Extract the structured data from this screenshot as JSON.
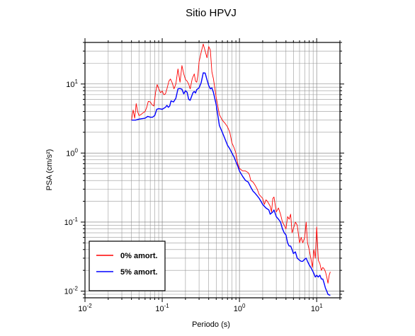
{
  "chart_data": {
    "type": "line",
    "title": "Sitio HPVJ",
    "xlabel": "Periodo (s)",
    "ylabel": "PSA (cm/s²)",
    "xscale": "log",
    "yscale": "log",
    "xlim": [
      0.01,
      20
    ],
    "ylim": [
      0.008,
      40
    ],
    "grid": true,
    "legend_position": "bottom-left",
    "x_tick_labels": [
      {
        "value": 0.01,
        "base": "10",
        "exp": "-2"
      },
      {
        "value": 0.1,
        "base": "10",
        "exp": "-1"
      },
      {
        "value": 1,
        "base": "10",
        "exp": "0"
      },
      {
        "value": 10,
        "base": "10",
        "exp": "1"
      }
    ],
    "y_tick_labels": [
      {
        "value": 0.01,
        "base": "10",
        "exp": "-2"
      },
      {
        "value": 0.1,
        "base": "10",
        "exp": "-1"
      },
      {
        "value": 1,
        "base": "10",
        "exp": "0"
      },
      {
        "value": 10,
        "base": "10",
        "exp": "1"
      }
    ],
    "series": [
      {
        "name": "0% amort.",
        "color": "#ff0000",
        "points": [
          [
            0.04,
            3.0
          ],
          [
            0.042,
            4.2
          ],
          [
            0.044,
            3.2
          ],
          [
            0.046,
            5.2
          ],
          [
            0.048,
            4.0
          ],
          [
            0.05,
            3.5
          ],
          [
            0.053,
            3.6
          ],
          [
            0.056,
            3.8
          ],
          [
            0.06,
            4.0
          ],
          [
            0.063,
            4.6
          ],
          [
            0.066,
            5.6
          ],
          [
            0.07,
            5.5
          ],
          [
            0.074,
            5.0
          ],
          [
            0.078,
            4.8
          ],
          [
            0.082,
            7.6
          ],
          [
            0.086,
            9.8
          ],
          [
            0.09,
            8.6
          ],
          [
            0.095,
            7.5
          ],
          [
            0.1,
            7.9
          ],
          [
            0.105,
            7.0
          ],
          [
            0.11,
            7.2
          ],
          [
            0.116,
            8.8
          ],
          [
            0.122,
            11.0
          ],
          [
            0.128,
            11.8
          ],
          [
            0.135,
            10.3
          ],
          [
            0.142,
            8.5
          ],
          [
            0.15,
            10.0
          ],
          [
            0.16,
            16.5
          ],
          [
            0.17,
            10.6
          ],
          [
            0.18,
            18.5
          ],
          [
            0.19,
            14.0
          ],
          [
            0.2,
            11.6
          ],
          [
            0.21,
            11.0
          ],
          [
            0.22,
            10.0
          ],
          [
            0.23,
            8.5
          ],
          [
            0.245,
            12.0
          ],
          [
            0.26,
            14.0
          ],
          [
            0.27,
            11.0
          ],
          [
            0.28,
            10.6
          ],
          [
            0.29,
            13.5
          ],
          [
            0.3,
            21.0
          ],
          [
            0.32,
            29.0
          ],
          [
            0.34,
            38.0
          ],
          [
            0.36,
            30.0
          ],
          [
            0.38,
            24.0
          ],
          [
            0.4,
            35.0
          ],
          [
            0.42,
            31.0
          ],
          [
            0.44,
            15.0
          ],
          [
            0.46,
            12.0
          ],
          [
            0.5,
            6.4
          ],
          [
            0.55,
            3.6
          ],
          [
            0.6,
            3.0
          ],
          [
            0.65,
            2.7
          ],
          [
            0.7,
            2.4
          ],
          [
            0.75,
            2.0
          ],
          [
            0.8,
            1.4
          ],
          [
            0.85,
            1.2
          ],
          [
            0.9,
            1.0
          ],
          [
            0.95,
            0.7
          ],
          [
            1.0,
            0.6
          ],
          [
            1.1,
            0.55
          ],
          [
            1.2,
            0.55
          ],
          [
            1.3,
            0.52
          ],
          [
            1.35,
            0.48
          ],
          [
            1.4,
            0.4
          ],
          [
            1.5,
            0.38
          ],
          [
            1.6,
            0.34
          ],
          [
            1.7,
            0.3
          ],
          [
            1.8,
            0.25
          ],
          [
            2.0,
            0.22
          ],
          [
            2.1,
            0.18
          ],
          [
            2.2,
            0.21
          ],
          [
            2.3,
            0.2
          ],
          [
            2.5,
            0.17
          ],
          [
            2.6,
            0.14
          ],
          [
            2.7,
            0.22
          ],
          [
            2.8,
            0.23
          ],
          [
            3.0,
            0.14
          ],
          [
            3.2,
            0.16
          ],
          [
            3.4,
            0.13
          ],
          [
            3.6,
            0.1
          ],
          [
            3.8,
            0.09
          ],
          [
            4.0,
            0.08
          ],
          [
            4.2,
            0.12
          ],
          [
            4.4,
            0.11
          ],
          [
            4.6,
            0.13
          ],
          [
            4.8,
            0.07
          ],
          [
            5.0,
            0.08
          ],
          [
            5.3,
            0.1
          ],
          [
            5.6,
            0.09
          ],
          [
            6.0,
            0.05
          ],
          [
            6.3,
            0.06
          ],
          [
            6.6,
            0.05
          ],
          [
            7.0,
            0.06
          ],
          [
            7.3,
            0.1
          ],
          [
            7.6,
            0.05
          ],
          [
            8.0,
            0.04
          ],
          [
            8.4,
            0.03
          ],
          [
            8.8,
            0.022
          ],
          [
            9.2,
            0.04
          ],
          [
            9.6,
            0.03
          ],
          [
            10.0,
            0.085
          ],
          [
            10.5,
            0.028
          ],
          [
            11.0,
            0.025
          ],
          [
            11.5,
            0.02
          ],
          [
            12.0,
            0.022
          ],
          [
            12.5,
            0.021
          ],
          [
            13.0,
            0.019
          ],
          [
            13.5,
            0.016
          ],
          [
            14.0,
            0.013
          ],
          [
            14.5,
            0.017
          ],
          [
            15.0,
            0.019
          ]
        ]
      },
      {
        "name": "5% amort.",
        "color": "#0000ff",
        "points": [
          [
            0.04,
            3.0
          ],
          [
            0.045,
            3.0
          ],
          [
            0.05,
            3.1
          ],
          [
            0.055,
            3.15
          ],
          [
            0.06,
            3.2
          ],
          [
            0.065,
            3.4
          ],
          [
            0.07,
            3.3
          ],
          [
            0.075,
            3.3
          ],
          [
            0.08,
            3.5
          ],
          [
            0.085,
            4.3
          ],
          [
            0.09,
            4.4
          ],
          [
            0.1,
            4.3
          ],
          [
            0.11,
            4.6
          ],
          [
            0.115,
            4.9
          ],
          [
            0.12,
            4.6
          ],
          [
            0.125,
            4.8
          ],
          [
            0.13,
            5.7
          ],
          [
            0.14,
            5.5
          ],
          [
            0.15,
            6.2
          ],
          [
            0.16,
            8.5
          ],
          [
            0.17,
            8.6
          ],
          [
            0.18,
            8.4
          ],
          [
            0.19,
            7.2
          ],
          [
            0.2,
            8.0
          ],
          [
            0.21,
            7.6
          ],
          [
            0.22,
            6.0
          ],
          [
            0.23,
            5.8
          ],
          [
            0.24,
            6.6
          ],
          [
            0.25,
            7.5
          ],
          [
            0.26,
            7.8
          ],
          [
            0.27,
            7.4
          ],
          [
            0.28,
            8.3
          ],
          [
            0.3,
            8.8
          ],
          [
            0.32,
            10.5
          ],
          [
            0.34,
            14.5
          ],
          [
            0.36,
            14.4
          ],
          [
            0.38,
            11.5
          ],
          [
            0.4,
            9.5
          ],
          [
            0.42,
            8.5
          ],
          [
            0.44,
            8.8
          ],
          [
            0.46,
            7.6
          ],
          [
            0.5,
            5.0
          ],
          [
            0.55,
            2.5
          ],
          [
            0.6,
            2.0
          ],
          [
            0.65,
            1.6
          ],
          [
            0.7,
            1.3
          ],
          [
            0.75,
            1.15
          ],
          [
            0.8,
            1.0
          ],
          [
            0.85,
            0.88
          ],
          [
            0.9,
            0.75
          ],
          [
            0.95,
            0.65
          ],
          [
            1.0,
            0.55
          ],
          [
            1.1,
            0.46
          ],
          [
            1.2,
            0.4
          ],
          [
            1.3,
            0.38
          ],
          [
            1.4,
            0.32
          ],
          [
            1.5,
            0.28
          ],
          [
            1.6,
            0.26
          ],
          [
            1.7,
            0.24
          ],
          [
            1.8,
            0.22
          ],
          [
            1.9,
            0.2
          ],
          [
            2.0,
            0.18
          ],
          [
            2.2,
            0.16
          ],
          [
            2.4,
            0.15
          ],
          [
            2.5,
            0.13
          ],
          [
            2.7,
            0.14
          ],
          [
            2.8,
            0.15
          ],
          [
            3.0,
            0.12
          ],
          [
            3.2,
            0.11
          ],
          [
            3.4,
            0.1
          ],
          [
            3.6,
            0.08
          ],
          [
            3.8,
            0.07
          ],
          [
            4.0,
            0.065
          ],
          [
            4.2,
            0.05
          ],
          [
            4.4,
            0.045
          ],
          [
            4.6,
            0.045
          ],
          [
            4.8,
            0.04
          ],
          [
            5.0,
            0.035
          ],
          [
            5.3,
            0.037
          ],
          [
            5.6,
            0.03
          ],
          [
            6.0,
            0.028
          ],
          [
            6.3,
            0.027
          ],
          [
            6.6,
            0.027
          ],
          [
            7.0,
            0.029
          ],
          [
            7.3,
            0.03
          ],
          [
            7.6,
            0.027
          ],
          [
            8.0,
            0.024
          ],
          [
            8.4,
            0.022
          ],
          [
            8.8,
            0.02
          ],
          [
            9.2,
            0.018
          ],
          [
            9.6,
            0.016
          ],
          [
            10.0,
            0.017
          ],
          [
            10.5,
            0.016
          ],
          [
            11.0,
            0.017
          ],
          [
            11.5,
            0.015
          ],
          [
            12.0,
            0.015
          ],
          [
            12.5,
            0.013
          ],
          [
            13.0,
            0.011
          ],
          [
            13.5,
            0.01
          ],
          [
            14.0,
            0.009
          ],
          [
            14.5,
            0.0088
          ],
          [
            15.0,
            0.0087
          ]
        ]
      }
    ]
  }
}
